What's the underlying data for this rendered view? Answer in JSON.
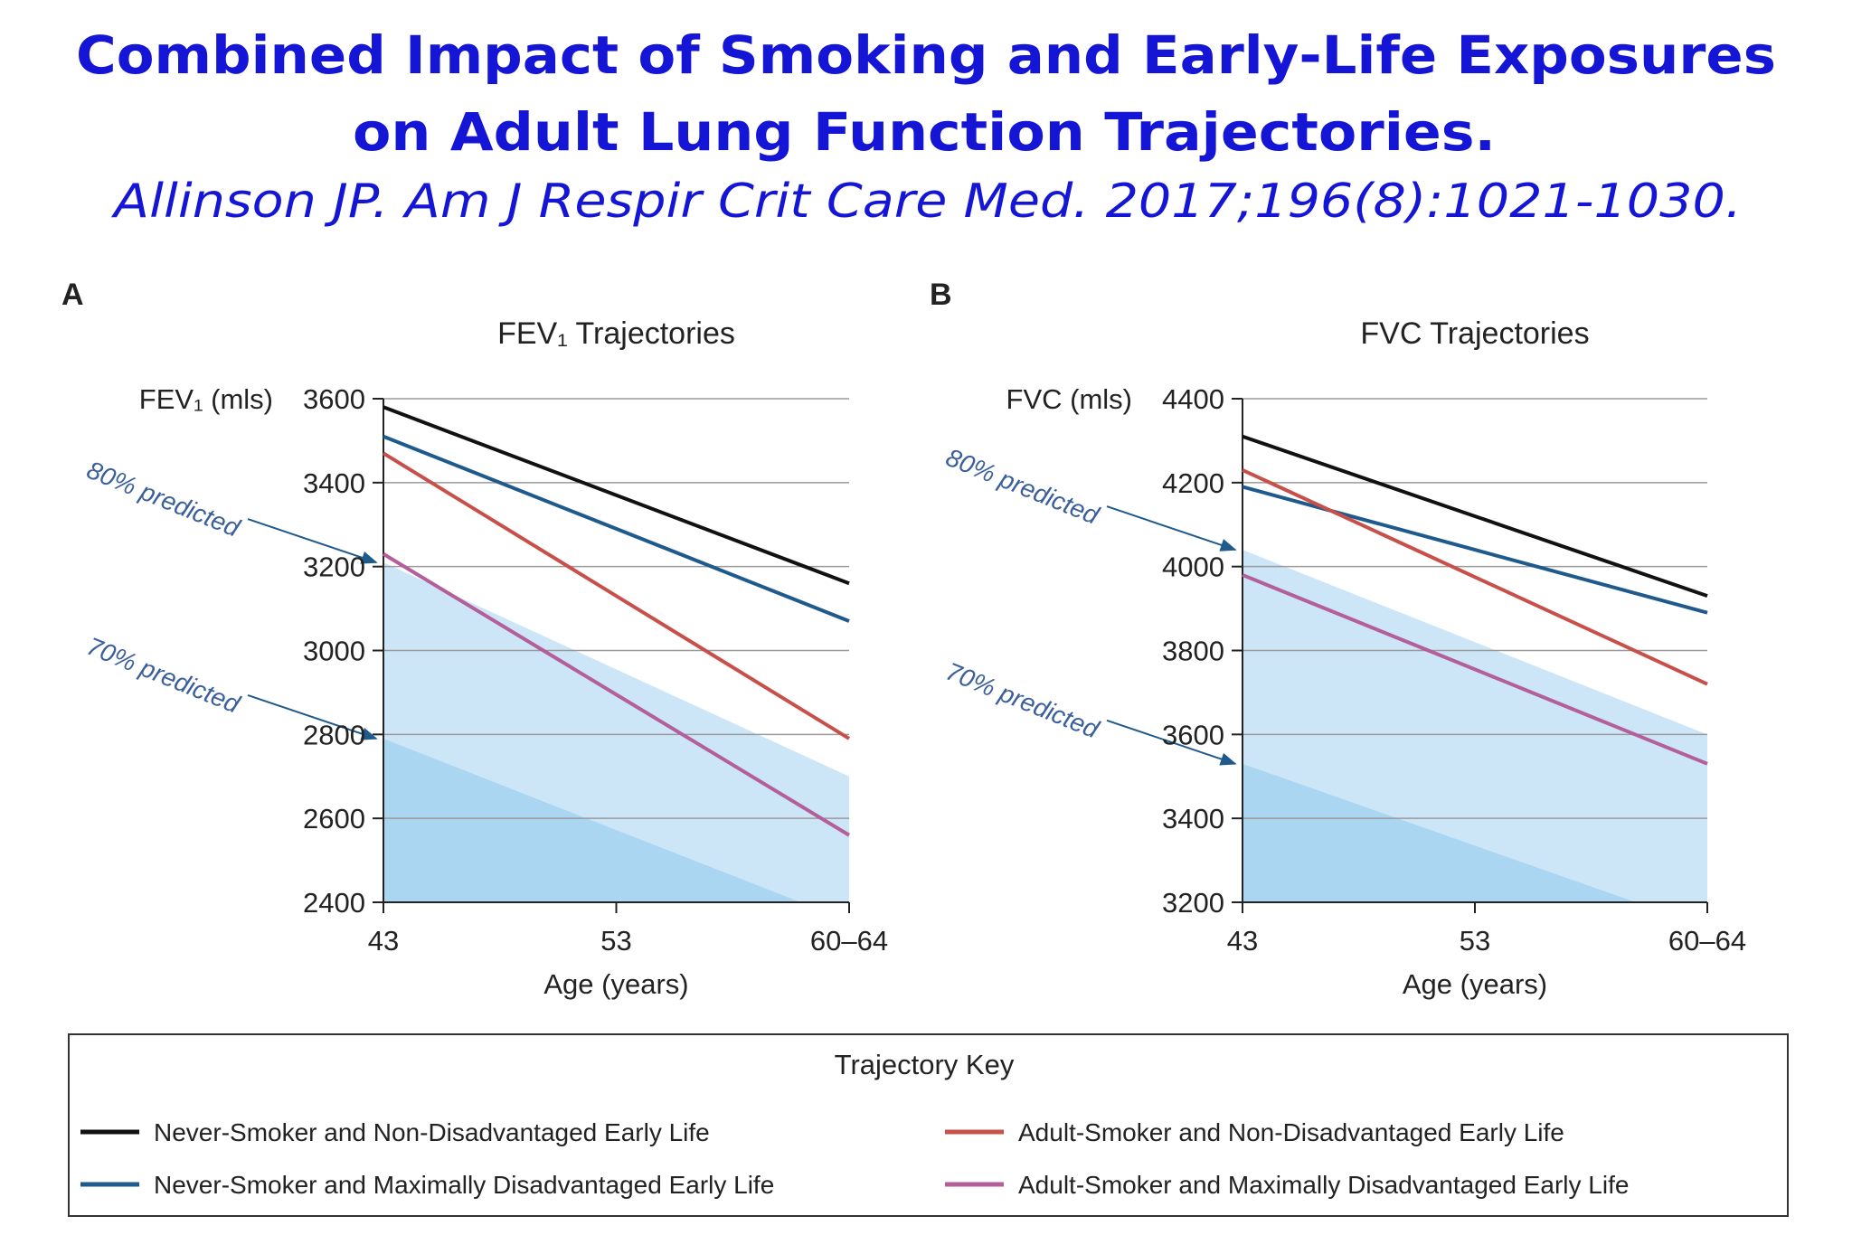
{
  "header": {
    "title_lines": [
      "Combined Impact of Smoking and Early-Life Exposures",
      "on Adult Lung Function Trajectories."
    ],
    "citation": "Allinson JP. Am J Respir Crit Care Med. 2017;196(8):1021-1030."
  },
  "chart_data": [
    {
      "type": "line",
      "panel": "A",
      "title": "FEV₁ Trajectories",
      "y_label": "FEV₁ (mls)",
      "x_label": "Age (years)",
      "categories": [
        "43",
        "53",
        "60–64"
      ],
      "ylim": [
        2400,
        3600
      ],
      "yticks": [
        2400,
        2600,
        2800,
        3000,
        3200,
        3400,
        3600
      ],
      "grid": true,
      "bands": [
        {
          "name": "80% predicted",
          "color": "#cce6f8",
          "values": [
            3210,
            2955,
            2700
          ]
        },
        {
          "name": "70% predicted",
          "color": "#aad6f2",
          "values": [
            2790,
            2572,
            2355
          ]
        }
      ],
      "series": [
        {
          "name": "Never-Smoker and Non-Disadvantaged Early Life",
          "color": "#111111",
          "values": [
            3580,
            3370,
            3160
          ]
        },
        {
          "name": "Never-Smoker and Maximally Disadvantaged Early Life",
          "color": "#1f5a8c",
          "values": [
            3510,
            3290,
            3070
          ]
        },
        {
          "name": "Adult-Smoker and Non-Disadvantaged Early Life",
          "color": "#c8504a",
          "values": [
            3470,
            3130,
            2790
          ]
        },
        {
          "name": "Adult-Smoker and Maximally Disadvantaged Early Life",
          "color": "#b45f9a",
          "values": [
            3230,
            2895,
            2560
          ]
        }
      ]
    },
    {
      "type": "line",
      "panel": "B",
      "title": "FVC Trajectories",
      "y_label": "FVC (mls)",
      "x_label": "Age (years)",
      "categories": [
        "43",
        "53",
        "60–64"
      ],
      "ylim": [
        3200,
        4400
      ],
      "yticks": [
        3200,
        3400,
        3600,
        3800,
        4000,
        4200,
        4400
      ],
      "grid": true,
      "bands": [
        {
          "name": "80% predicted",
          "color": "#cce6f8",
          "values": [
            4040,
            3820,
            3600
          ]
        },
        {
          "name": "70% predicted",
          "color": "#aad6f2",
          "values": [
            3530,
            3335,
            3140
          ]
        }
      ],
      "series": [
        {
          "color": "#111111",
          "values": [
            4310,
            4120,
            3930
          ]
        },
        {
          "color": "#1f5a8c",
          "values": [
            4190,
            4040,
            3890
          ]
        },
        {
          "color": "#c8504a",
          "values": [
            4230,
            3975,
            3720
          ]
        },
        {
          "color": "#b45f9a",
          "values": [
            3980,
            3755,
            3530
          ]
        }
      ]
    }
  ],
  "legend": {
    "title": "Trajectory Key"
  }
}
